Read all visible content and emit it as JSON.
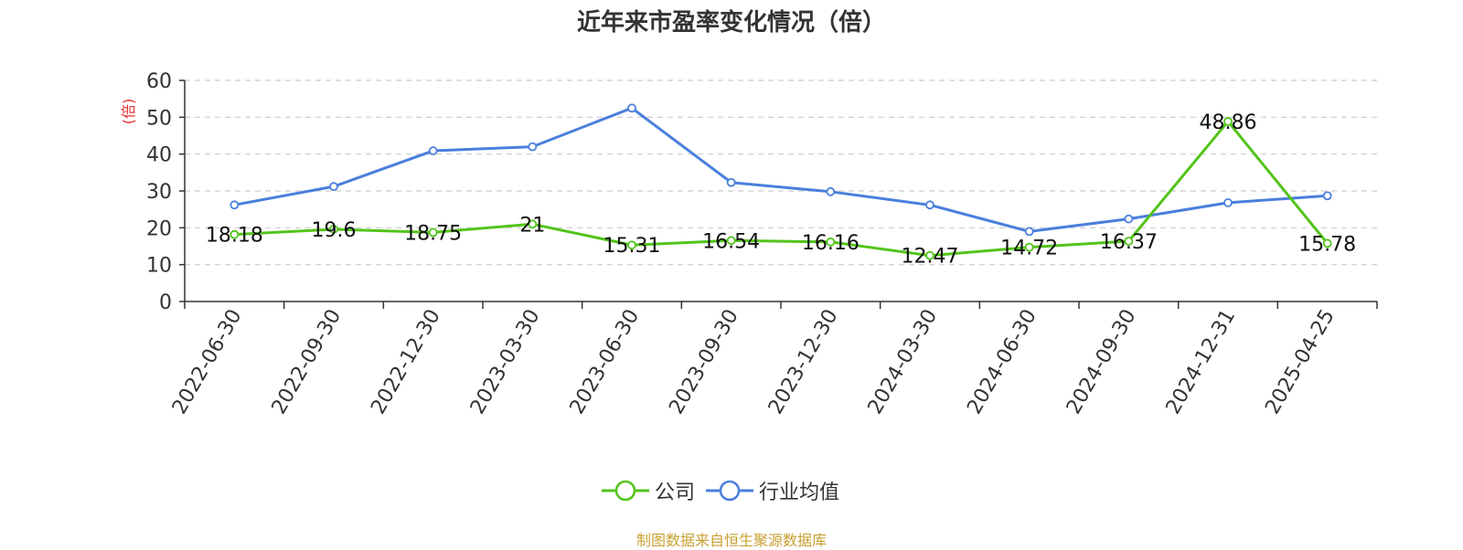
{
  "chart_data": {
    "type": "line",
    "title": "近年来市盈率变化情况（倍）",
    "ylabel": "(倍)",
    "xlabel": "",
    "ylim": [
      0,
      60
    ],
    "yticks": [
      0,
      10,
      20,
      30,
      40,
      50,
      60
    ],
    "grid": true,
    "legend_position": "bottom",
    "categories": [
      "2022-06-30",
      "2022-09-30",
      "2022-12-30",
      "2023-03-30",
      "2023-06-30",
      "2023-09-30",
      "2023-12-30",
      "2024-03-30",
      "2024-06-30",
      "2024-09-30",
      "2024-12-31",
      "2025-04-25"
    ],
    "series": [
      {
        "name": "公司",
        "color": "#52c41a",
        "values": [
          18.18,
          19.6,
          18.75,
          21,
          15.31,
          16.54,
          16.16,
          12.47,
          14.72,
          16.37,
          48.86,
          15.78
        ],
        "labels": [
          "18.18",
          "19.6",
          "18.75",
          "21",
          "15.31",
          "16.54",
          "16.16",
          "12.47",
          "14.72",
          "16.37",
          "48.86",
          "15.78"
        ]
      },
      {
        "name": "行业均值",
        "color": "#4a7fdc",
        "values": [
          26.2,
          31.2,
          40.9,
          42.0,
          52.5,
          32.3,
          29.8,
          26.2,
          19.0,
          22.4,
          26.8,
          28.7
        ]
      }
    ],
    "source_note": "制图数据来自恒生聚源数据库"
  },
  "colors": {
    "axis": "#333333",
    "grid": "#cccccc",
    "ylabel": "#e03030",
    "source": "#c8a032"
  }
}
